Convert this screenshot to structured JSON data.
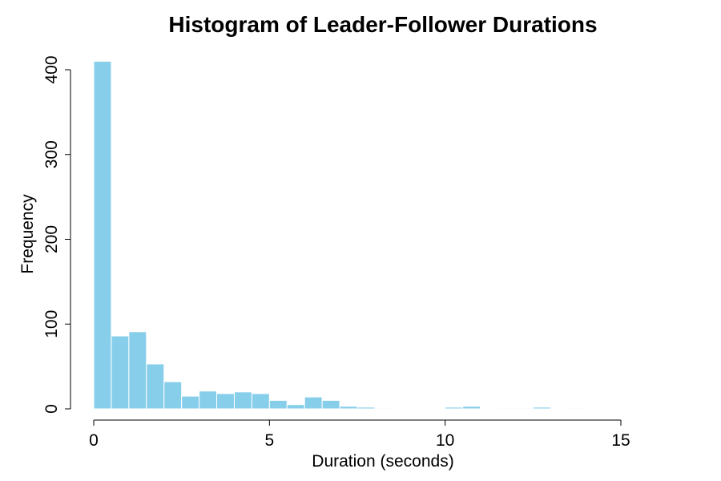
{
  "chart_data": {
    "type": "bar",
    "title": "Histogram of Leader-Follower Durations",
    "xlabel": "Duration (seconds)",
    "ylabel": "Frequency",
    "xlim": [
      0,
      15
    ],
    "ylim": [
      0,
      400
    ],
    "bin_width": 0.5,
    "bin_starts": [
      0,
      0.5,
      1,
      1.5,
      2,
      2.5,
      3,
      3.5,
      4,
      4.5,
      5,
      5.5,
      6,
      6.5,
      7,
      7.5,
      8,
      8.5,
      9,
      9.5,
      10,
      10.5,
      11,
      11.5,
      12,
      12.5,
      13,
      13.5
    ],
    "values": [
      410,
      86,
      91,
      53,
      32,
      15,
      21,
      18,
      20,
      18,
      10,
      5,
      14,
      10,
      3,
      2,
      1,
      0,
      0,
      0,
      2,
      3,
      0,
      1,
      1,
      2,
      0,
      1
    ],
    "xticks": [
      "0",
      "5",
      "10",
      "15"
    ],
    "yticks": [
      "0",
      "100",
      "200",
      "300",
      "400"
    ],
    "bar_color": "#87CEEB",
    "grid": false,
    "legend": "none"
  }
}
